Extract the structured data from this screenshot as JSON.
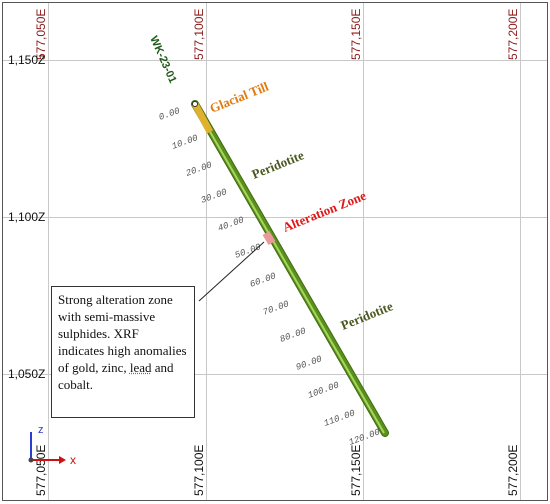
{
  "colors": {
    "grid": "#c8c8c8",
    "frame": "#555555",
    "easting_label": "#8b1a1a",
    "elevation_label": "#111111",
    "drillhole_green": "#5b8f1e",
    "drillhole_highlight": "#a6d65a",
    "glacial_till": "#e0b12c",
    "alteration_segment": "#e89a9a",
    "label_glacial_till": "#e07b12",
    "label_peridotite": "#4b5a22",
    "label_alteration": "#e01818",
    "hole_id": "#1e5a18",
    "depth_label": "#555555",
    "axis_x": "#cc1111",
    "axis_z": "#2a3fd0"
  },
  "eastings_top": [
    "577,050E",
    "577,100E",
    "577,150E",
    "577,200E"
  ],
  "eastings_bottom": [
    "577,050E",
    "577,100E",
    "577,150E",
    "577,200E"
  ],
  "elevations": [
    "1,150Z",
    "1,100Z",
    "1,050Z"
  ],
  "drillhole": {
    "id": "WK-23-01",
    "depth_ticks": [
      "0.00",
      "10.00",
      "20.00",
      "30.00",
      "40.00",
      "50.00",
      "60.00",
      "70.00",
      "80.00",
      "90.00",
      "100.00",
      "110.00",
      "120.00"
    ]
  },
  "annotations": {
    "glacial_till": "Glacial Till",
    "peridotite_upper": "Peridotite",
    "alteration_zone": "Alteration Zone",
    "peridotite_lower": "Peridotite"
  },
  "callout": {
    "text_main": "Strong alteration zone with semi-massive sulphides. XRF indicates high anomalies of gold, zinc, ",
    "text_underlined": "lead",
    "text_end": " and cobalt."
  },
  "axes_gizmo": {
    "x_label": "x",
    "z_label": "z"
  }
}
